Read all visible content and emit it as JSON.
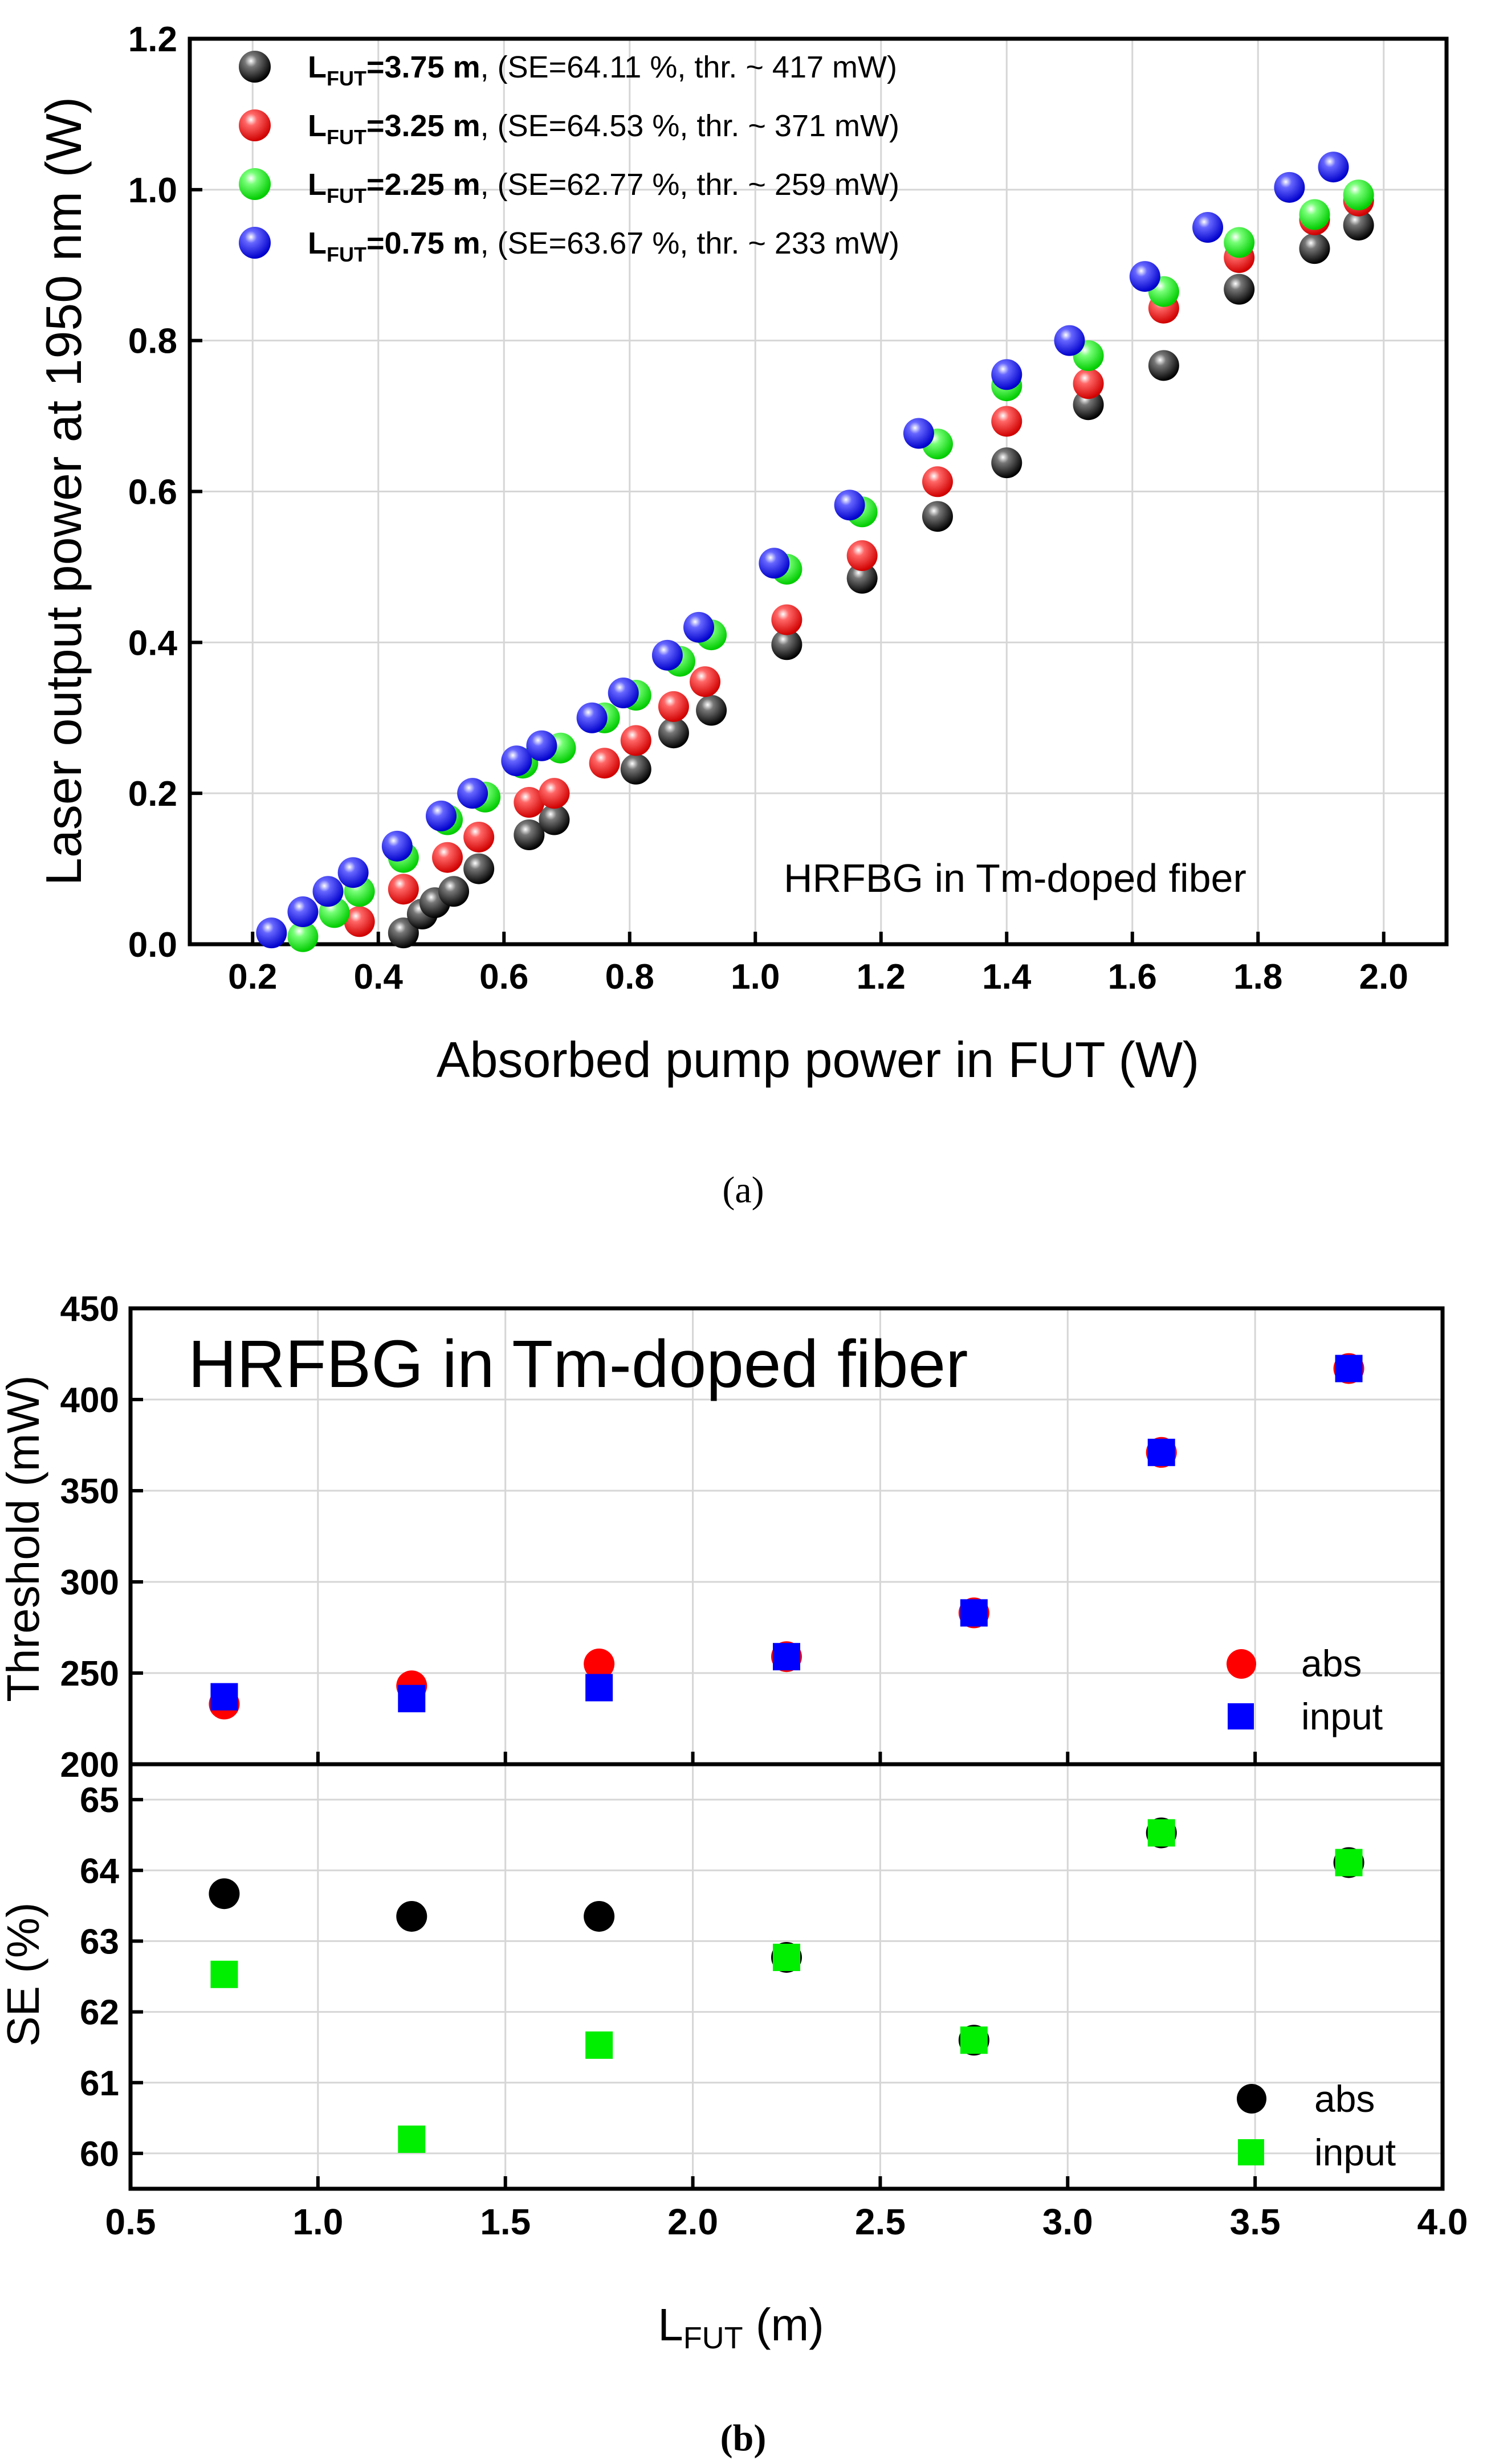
{
  "figure": {
    "caption_a": "(a)",
    "caption_b": "(b)"
  },
  "chart_data": [
    {
      "id": "a",
      "type": "scatter",
      "xlabel": "Absorbed pump power in FUT (W)",
      "ylabel": "Laser output power at 1950 nm (W)",
      "xlim": [
        0.1,
        2.1
      ],
      "ylim": [
        0.0,
        1.2
      ],
      "xticks": [
        "0.2",
        "0.4",
        "0.6",
        "0.8",
        "1.0",
        "1.2",
        "1.4",
        "1.6",
        "1.8",
        "2.0"
      ],
      "yticks": [
        "0.0",
        "0.2",
        "0.4",
        "0.6",
        "0.8",
        "1.0",
        "1.2"
      ],
      "grid": true,
      "annotation": "HRFBG in Tm-doped fiber",
      "legend": [
        {
          "sub_l": "L",
          "sub": "FUT",
          "len": "=3.75 m",
          "rest": ", (SE=64.11 %, thr. ~ 417 mW)"
        },
        {
          "sub_l": "L",
          "sub": "FUT",
          "len": "=3.25 m",
          "rest": ", (SE=64.53 %, thr. ~ 371 mW)"
        },
        {
          "sub_l": "L",
          "sub": "FUT",
          "len": "=2.25 m",
          "rest": ", (SE=62.77 %, thr. ~ 259 mW)"
        },
        {
          "sub_l": "L",
          "sub": "FUT",
          "len": "=0.75 m",
          "rest": ", (SE=63.67 %, thr. ~ 233 mW)"
        }
      ],
      "series": [
        {
          "name": "LFUT=3.75 m",
          "color": "#000000",
          "x": [
            0.44,
            0.47,
            0.49,
            0.52,
            0.56,
            0.64,
            0.68,
            0.81,
            0.87,
            0.93,
            1.05,
            1.17,
            1.29,
            1.4,
            1.53,
            1.65,
            1.77,
            1.89,
            1.96
          ],
          "y": [
            0.015,
            0.04,
            0.055,
            0.07,
            0.1,
            0.145,
            0.165,
            0.232,
            0.28,
            0.31,
            0.397,
            0.485,
            0.567,
            0.638,
            0.715,
            0.767,
            0.868,
            0.922,
            0.953
          ]
        },
        {
          "name": "LFUT=3.25 m",
          "color": "#ff0000",
          "x": [
            0.37,
            0.44,
            0.51,
            0.56,
            0.64,
            0.68,
            0.76,
            0.81,
            0.87,
            0.92,
            1.05,
            1.17,
            1.29,
            1.4,
            1.53,
            1.65,
            1.77,
            1.89,
            1.96
          ],
          "y": [
            0.03,
            0.073,
            0.115,
            0.142,
            0.188,
            0.2,
            0.24,
            0.27,
            0.315,
            0.348,
            0.43,
            0.515,
            0.613,
            0.693,
            0.743,
            0.843,
            0.91,
            0.96,
            0.985
          ]
        },
        {
          "name": "LFUT=2.25 m",
          "color": "#00ee00",
          "x": [
            0.28,
            0.33,
            0.37,
            0.44,
            0.51,
            0.57,
            0.63,
            0.69,
            0.76,
            0.81,
            0.88,
            0.93,
            1.05,
            1.17,
            1.29,
            1.4,
            1.53,
            1.65,
            1.77,
            1.89,
            1.96
          ],
          "y": [
            0.01,
            0.042,
            0.07,
            0.115,
            0.165,
            0.195,
            0.24,
            0.26,
            0.3,
            0.33,
            0.375,
            0.41,
            0.497,
            0.573,
            0.663,
            0.74,
            0.78,
            0.865,
            0.93,
            0.967,
            0.993
          ]
        },
        {
          "name": "LFUT=0.75 m",
          "color": "#0000ff",
          "x": [
            0.23,
            0.28,
            0.32,
            0.36,
            0.43,
            0.5,
            0.55,
            0.62,
            0.66,
            0.74,
            0.79,
            0.86,
            0.91,
            1.03,
            1.15,
            1.26,
            1.4,
            1.5,
            1.62,
            1.72,
            1.85,
            1.92
          ],
          "y": [
            0.015,
            0.043,
            0.07,
            0.095,
            0.13,
            0.17,
            0.2,
            0.243,
            0.263,
            0.3,
            0.333,
            0.383,
            0.42,
            0.505,
            0.582,
            0.677,
            0.755,
            0.8,
            0.885,
            0.95,
            1.003,
            1.03
          ]
        }
      ]
    },
    {
      "id": "b-top",
      "type": "scatter",
      "xlabel": "",
      "ylabel": "Threshold (mW)",
      "xlim": [
        0.5,
        4.0
      ],
      "ylim": [
        200,
        450
      ],
      "yticks": [
        "200",
        "250",
        "300",
        "350",
        "400",
        "450"
      ],
      "grid": true,
      "annotation": "HRFBG in Tm-doped fiber",
      "legend": [
        "abs",
        "input"
      ],
      "series": [
        {
          "name": "abs",
          "color": "#ff0000",
          "marker": "circle",
          "x": [
            0.75,
            1.25,
            1.75,
            2.25,
            2.75,
            3.25,
            3.75
          ],
          "y": [
            233,
            243,
            255,
            259,
            283,
            371,
            417
          ]
        },
        {
          "name": "input",
          "color": "#0000ff",
          "marker": "square",
          "x": [
            0.75,
            1.25,
            1.75,
            2.25,
            2.75,
            3.25,
            3.75
          ],
          "y": [
            237,
            236,
            242,
            259,
            283,
            371,
            417
          ]
        }
      ]
    },
    {
      "id": "b-bottom",
      "type": "scatter",
      "xlabel_main": "L",
      "xlabel_sub": "FUT",
      "xlabel_tail": " (m)",
      "ylabel": "SE (%)",
      "xlim": [
        0.5,
        4.0
      ],
      "ylim": [
        59.5,
        65.5
      ],
      "xticks": [
        "0.5",
        "1.0",
        "1.5",
        "2.0",
        "2.5",
        "3.0",
        "3.5",
        "4.0"
      ],
      "yticks": [
        "60",
        "61",
        "62",
        "63",
        "64",
        "65"
      ],
      "grid": true,
      "legend": [
        "abs",
        "input"
      ],
      "series": [
        {
          "name": "abs",
          "color": "#000000",
          "marker": "circle",
          "x": [
            0.75,
            1.25,
            1.75,
            2.25,
            2.75,
            3.25,
            3.75
          ],
          "y": [
            63.67,
            63.35,
            63.35,
            62.77,
            61.6,
            64.53,
            64.11
          ]
        },
        {
          "name": "input",
          "color": "#00ee00",
          "marker": "square",
          "x": [
            0.75,
            1.25,
            1.75,
            2.25,
            2.75,
            3.25,
            3.75
          ],
          "y": [
            62.53,
            60.2,
            61.53,
            62.77,
            61.6,
            64.53,
            64.11
          ]
        }
      ]
    }
  ]
}
